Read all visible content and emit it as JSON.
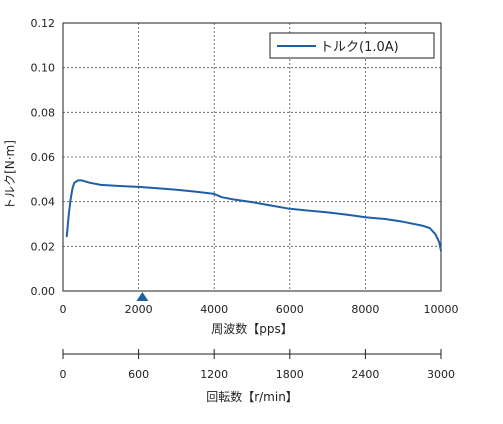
{
  "chart_data": {
    "type": "line",
    "ylabel": "トルク[N·m]",
    "xlabel": "周波数【pps】",
    "x2label": "回転数【r/min】",
    "xlim": [
      0,
      10000
    ],
    "ylim": [
      0,
      0.12
    ],
    "x2lim": [
      0,
      3000
    ],
    "grid": true,
    "legend_position": "top-right",
    "x_ticks": [
      "0",
      "2000",
      "4000",
      "6000",
      "8000",
      "10000"
    ],
    "y_ticks": [
      "0.00",
      "0.02",
      "0.04",
      "0.06",
      "0.08",
      "0.10",
      "0.12"
    ],
    "x2_ticks": [
      "0",
      "600",
      "1200",
      "1800",
      "2400",
      "3000"
    ],
    "marker_x": 2100,
    "series": [
      {
        "name": "トルク(1.0A)",
        "color": "#1f5fa6",
        "x": [
          100,
          150,
          200,
          250,
          300,
          400,
          500,
          700,
          1000,
          1500,
          2000,
          2500,
          3000,
          3500,
          4000,
          4200,
          4500,
          5000,
          5500,
          6000,
          6500,
          7000,
          7500,
          8000,
          8500,
          9000,
          9500,
          9700,
          9850,
          9950,
          10000
        ],
        "y": [
          0.0245,
          0.034,
          0.041,
          0.046,
          0.0485,
          0.0495,
          0.0495,
          0.0485,
          0.0475,
          0.047,
          0.0466,
          0.046,
          0.0453,
          0.0445,
          0.0435,
          0.042,
          0.041,
          0.0398,
          0.0383,
          0.0368,
          0.036,
          0.0352,
          0.0342,
          0.033,
          0.0323,
          0.031,
          0.0293,
          0.0282,
          0.0255,
          0.022,
          0.018
        ]
      }
    ]
  },
  "colors": {
    "series": "#1f5fa6",
    "marker": "#1f5fa6",
    "grid": "#555555",
    "axis": "#222222"
  }
}
